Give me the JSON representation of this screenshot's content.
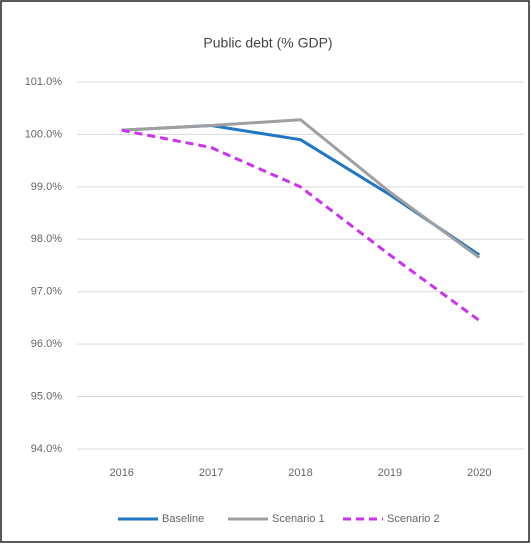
{
  "chart_data": {
    "type": "line",
    "title": "Public debt (% GDP)",
    "categories": [
      "2016",
      "2017",
      "2018",
      "2019",
      "2020"
    ],
    "series": [
      {
        "name": "Baseline",
        "color": "#1f77c4",
        "dash": false,
        "values": [
          100.08,
          100.17,
          99.9,
          98.85,
          97.7
        ]
      },
      {
        "name": "Scenario 1",
        "color": "#a0a0a0",
        "dash": false,
        "values": [
          100.08,
          100.17,
          100.28,
          98.9,
          97.65
        ]
      },
      {
        "name": "Scenario 2",
        "color": "#cc33ee",
        "dash": true,
        "values": [
          100.08,
          99.75,
          99.0,
          97.7,
          96.45
        ]
      }
    ],
    "ylim": [
      94,
      101
    ],
    "yticks": [
      {
        "value": 94,
        "label": "94.0%"
      },
      {
        "value": 95,
        "label": "95.0%"
      },
      {
        "value": 96,
        "label": "96.0%"
      },
      {
        "value": 97,
        "label": "97.0%"
      },
      {
        "value": 98,
        "label": "98.0%"
      },
      {
        "value": 99,
        "label": "99.0%"
      },
      {
        "value": 100,
        "label": "100.0%"
      },
      {
        "value": 101,
        "label": "101.0%"
      }
    ],
    "grid": true,
    "legend": "bottom"
  }
}
